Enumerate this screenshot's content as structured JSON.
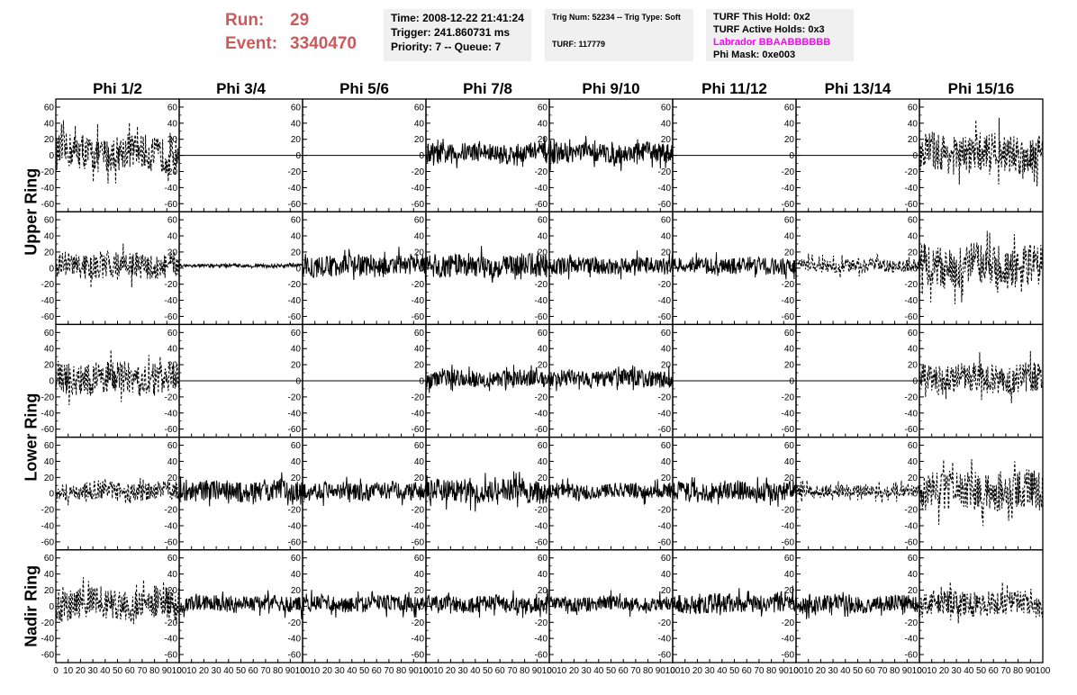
{
  "header": {
    "run_label": "Run:",
    "run_value": "29",
    "event_label": "Event:",
    "event_value": "3340470",
    "time": "Time: 2008-12-22 21:41:24",
    "trigger": "Trigger: 241.860731 ms",
    "priority": "Priority: 7 -- Queue: 7",
    "trig_num": "Trig Num: 52234 -- Trig Type: Soft",
    "turf": "TURF: 117779",
    "turf_this_hold": "TURF This Hold: 0x2",
    "turf_active_holds": "TURF Active Holds: 0x3",
    "labrador": "Labrador BBAABBBBBB",
    "phi_mask": "Phi Mask: 0xe003"
  },
  "colors": {
    "run_text": "#cc5a5a",
    "labrador_text": "#ff00ff",
    "info_bg": "#f0f0f0"
  },
  "chart_data": {
    "type": "line",
    "phi_columns": [
      "Phi 1/2",
      "Phi 3/4",
      "Phi 5/6",
      "Phi 7/8",
      "Phi 9/10",
      "Phi 11/12",
      "Phi 13/14",
      "Phi 15/16"
    ],
    "ring_labels": [
      "Upper Ring",
      "Lower Ring",
      "Nadir Ring"
    ],
    "ylim": [
      -70,
      70
    ],
    "xlim": [
      0,
      100
    ],
    "yticks": [
      -60,
      -40,
      -20,
      0,
      20,
      40,
      60
    ],
    "xticks": [
      0,
      10,
      20,
      30,
      40,
      50,
      60,
      70,
      80,
      90,
      100
    ],
    "rows": [
      [
        {
          "style": "dashed",
          "amp": 22
        },
        {
          "style": "flat",
          "amp": 0
        },
        {
          "style": "flat",
          "amp": 0
        },
        {
          "style": "solid",
          "amp": 12
        },
        {
          "style": "solid",
          "amp": 12
        },
        {
          "style": "flat",
          "amp": 0
        },
        {
          "style": "flat",
          "amp": 0
        },
        {
          "style": "dashed",
          "amp": 24
        }
      ],
      [
        {
          "style": "dashed",
          "amp": 16
        },
        {
          "style": "solid",
          "amp": 2
        },
        {
          "style": "solid",
          "amp": 13
        },
        {
          "style": "solid",
          "amp": 14
        },
        {
          "style": "solid",
          "amp": 10
        },
        {
          "style": "solid",
          "amp": 10
        },
        {
          "style": "dashed",
          "amp": 8
        },
        {
          "style": "dashed",
          "amp": 26
        }
      ],
      [
        {
          "style": "dashed",
          "amp": 20
        },
        {
          "style": "flat",
          "amp": 0
        },
        {
          "style": "flat",
          "amp": 0
        },
        {
          "style": "solid",
          "amp": 10
        },
        {
          "style": "solid",
          "amp": 10
        },
        {
          "style": "flat",
          "amp": 0
        },
        {
          "style": "flat",
          "amp": 0
        },
        {
          "style": "dashed",
          "amp": 18
        }
      ],
      [
        {
          "style": "dashed",
          "amp": 11
        },
        {
          "style": "solid",
          "amp": 13
        },
        {
          "style": "solid",
          "amp": 11
        },
        {
          "style": "solid",
          "amp": 14
        },
        {
          "style": "solid",
          "amp": 9
        },
        {
          "style": "solid",
          "amp": 12
        },
        {
          "style": "dashed",
          "amp": 8
        },
        {
          "style": "dashed",
          "amp": 24
        }
      ],
      [
        {
          "style": "dashed",
          "amp": 20
        },
        {
          "style": "solid",
          "amp": 10
        },
        {
          "style": "solid",
          "amp": 10
        },
        {
          "style": "solid",
          "amp": 10
        },
        {
          "style": "solid",
          "amp": 9
        },
        {
          "style": "solid",
          "amp": 12
        },
        {
          "style": "solid",
          "amp": 10
        },
        {
          "style": "dashed",
          "amp": 15
        }
      ]
    ]
  }
}
